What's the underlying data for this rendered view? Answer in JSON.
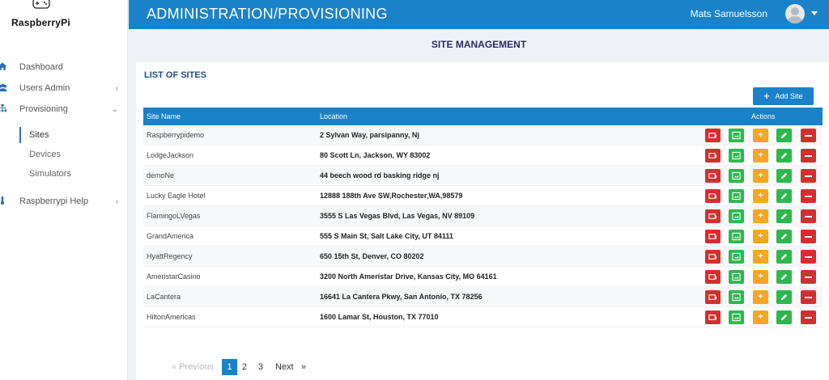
{
  "app": {
    "logo_text": "RaspberryPi"
  },
  "header": {
    "title": "ADMINISTRATION/PROVISIONING",
    "user_name": "Mats Samuelsson"
  },
  "sidebar": {
    "items": [
      {
        "label": "Dashboard",
        "icon": "home-icon"
      },
      {
        "label": "Users Admin",
        "icon": "users-icon"
      },
      {
        "label": "Provisioning",
        "icon": "sitemap-icon"
      },
      {
        "label": "Raspberrypi Help",
        "icon": "thermometer-icon"
      }
    ],
    "sub_items": [
      "Sites",
      "Devices",
      "Simulators"
    ]
  },
  "page": {
    "title": "SITE MANAGEMENT"
  },
  "card": {
    "title": "LIST OF SITES",
    "add_button": "Add Site"
  },
  "table": {
    "headers": {
      "name": "Site Name",
      "location": "Location",
      "actions": "Actions"
    },
    "rows": [
      {
        "name": "Raspberrypidemo",
        "location": "2 Sylvan Way, parsipanny, Nj"
      },
      {
        "name": "LodgeJackson",
        "location": "80 Scott Ln, Jackson, WY 83002"
      },
      {
        "name": "demoNe",
        "location": "44 beech wood rd basking ridge nj"
      },
      {
        "name": "Lucky Eagle Hotel",
        "location": "12888 188th Ave SW,Rochester,WA,98579"
      },
      {
        "name": "FlamingoLVegas",
        "location": "3555 S Las Vegas Blvd, Las Vegas, NV 89109"
      },
      {
        "name": "GrandAmerica",
        "location": "555 S Main St, Salt Lake City, UT 84111"
      },
      {
        "name": "HyattRegency",
        "location": "650 15th St, Denver, CO 80202"
      },
      {
        "name": "AmeristarCasino",
        "location": "3200 North Ameristar Drive, Kansas City, MO 64161"
      },
      {
        "name": "LaCantera",
        "location": "16641 La Cantera Pkwy, San Antonio, TX 78256"
      },
      {
        "name": "HiltonAmericas",
        "location": "1600 Lamar St, Houston, TX 77010"
      }
    ]
  },
  "pagination": {
    "previous": "« Previous",
    "pages": [
      "1",
      "2",
      "3"
    ],
    "current": "1",
    "next": "Next",
    "next_arrow": "»"
  },
  "colors": {
    "primary": "#1a82c8",
    "danger": "#d32f2f",
    "success": "#2db84d",
    "warning": "#f5a623"
  }
}
